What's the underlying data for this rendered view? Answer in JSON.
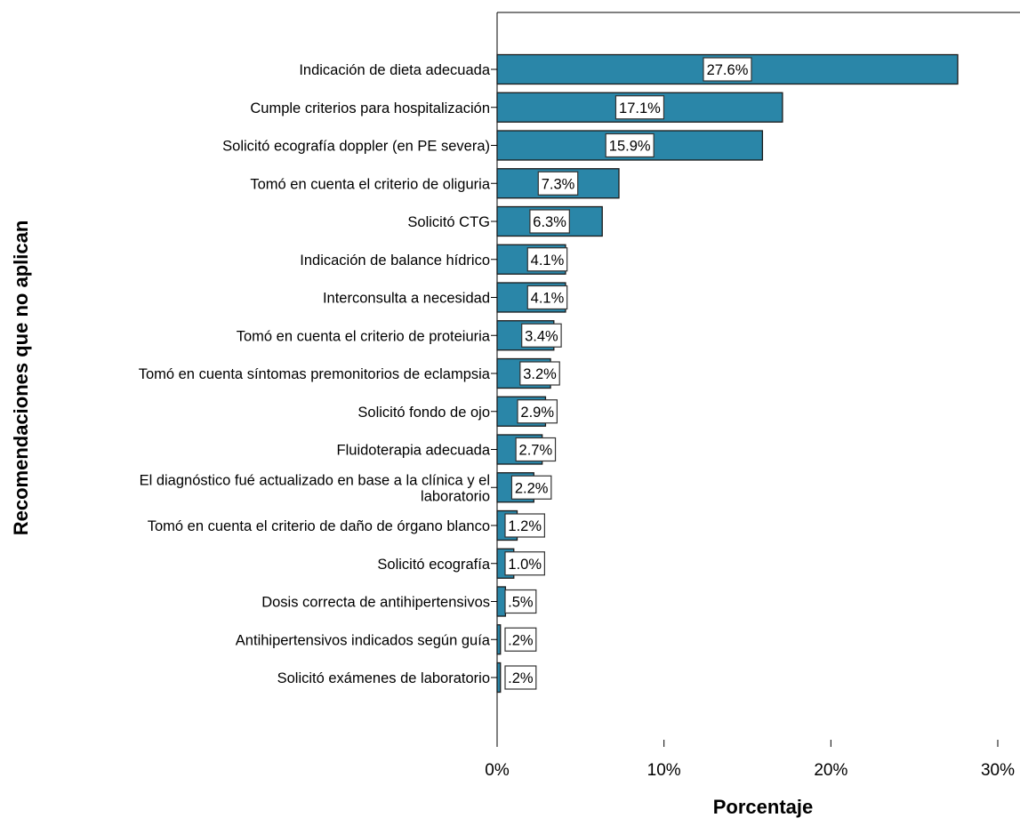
{
  "chart_data": {
    "type": "bar",
    "orientation": "horizontal",
    "categories": [
      [
        "Indicación de dieta adecuada"
      ],
      [
        "Cumple criterios para hospitalización"
      ],
      [
        "Solicitó ecografía doppler (en PE severa)"
      ],
      [
        "Tomó en cuenta el criterio de oliguria"
      ],
      [
        "Solicitó CTG"
      ],
      [
        "Indicación de balance hídrico"
      ],
      [
        "Interconsulta a necesidad"
      ],
      [
        "Tomó en cuenta el criterio de proteiuria"
      ],
      [
        "Tomó en cuenta síntomas premonitorios de eclampsia"
      ],
      [
        "Solicitó fondo de ojo"
      ],
      [
        "Fluidoterapia adecuada"
      ],
      [
        "El diagnóstico fué actualizado en base a la clínica y el",
        "laboratorio"
      ],
      [
        "Tomó en cuenta el criterio de daño de órgano blanco"
      ],
      [
        "Solicitó ecografía"
      ],
      [
        "Dosis correcta de antihipertensivos"
      ],
      [
        "Antihipertensivos indicados según guía"
      ],
      [
        "Solicitó exámenes de laboratorio"
      ]
    ],
    "values": [
      27.6,
      17.1,
      15.9,
      7.3,
      6.3,
      4.1,
      4.1,
      3.4,
      3.2,
      2.9,
      2.7,
      2.2,
      1.2,
      1.0,
      0.5,
      0.2,
      0.2
    ],
    "data_labels": [
      "27.6%",
      "17.1%",
      "15.9%",
      "7.3%",
      "6.3%",
      "4.1%",
      "4.1%",
      "3.4%",
      "3.2%",
      "2.9%",
      "2.7%",
      "2.2%",
      "1.2%",
      "1.0%",
      ".5%",
      ".2%",
      ".2%"
    ],
    "xlabel": "Porcentaje",
    "ylabel": "Recomendaciones que no aplican",
    "xlim": [
      0,
      31
    ],
    "xticks": [
      0,
      10,
      20,
      30
    ],
    "xtick_labels": [
      "0%",
      "10%",
      "20%",
      "30%"
    ],
    "grid": false,
    "bar_color": "#2a86a8",
    "bar_edge_color": "#1a1a1a"
  }
}
